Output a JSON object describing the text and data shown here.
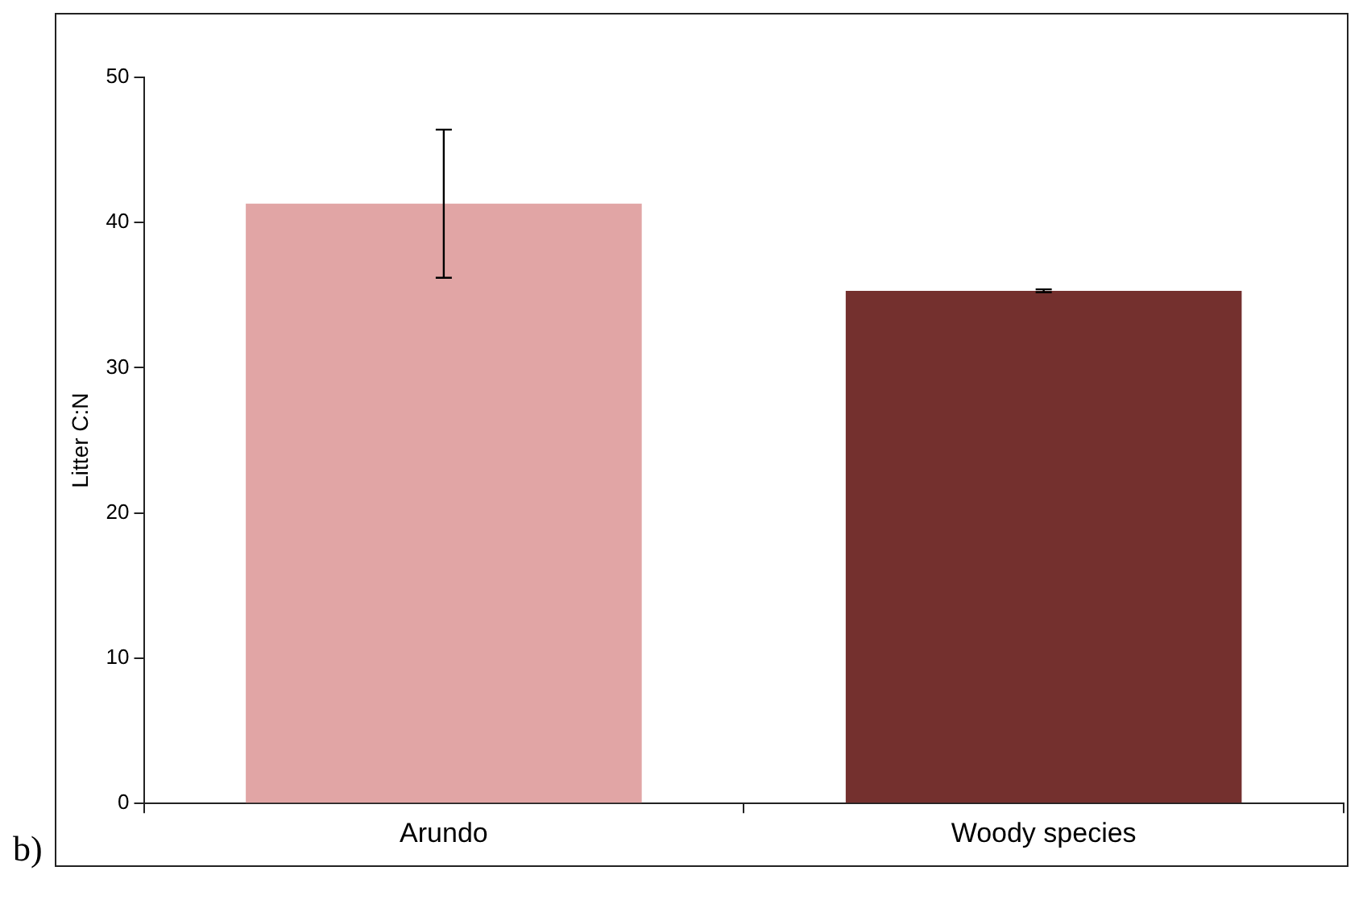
{
  "chart_data": {
    "type": "bar",
    "ylabel": "Litter C:N",
    "categories": [
      "Arundo",
      "Woody species"
    ],
    "values": [
      41.3,
      35.3
    ],
    "colors": [
      "#e1a5a5",
      "#74302e"
    ],
    "errors": [
      5.1,
      0.1
    ],
    "ylim": [
      0,
      50
    ],
    "yticks": [
      0,
      10,
      20,
      30,
      40,
      50
    ],
    "grid": false,
    "legend": false,
    "annotations": [
      "b)"
    ]
  }
}
